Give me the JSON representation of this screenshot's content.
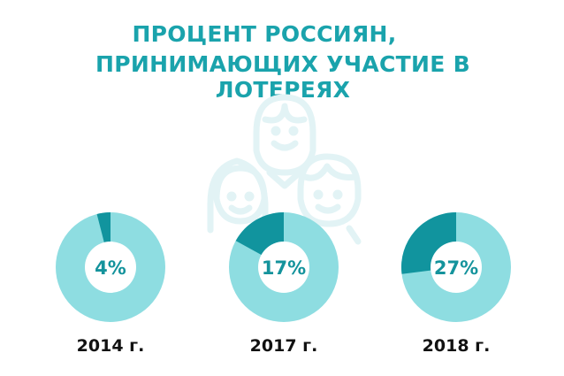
{
  "title": {
    "line1": "ПРОЦЕНТ РОССИЯН,",
    "line2": "ПРИНИМАЮЩИХ УЧАСТИЕ В ЛОТЕРЕЯХ"
  },
  "icon": "people-group-icon",
  "colors": {
    "title": "#1aa3ac",
    "filled": "#11949e",
    "rest": "#8edde1",
    "icon": "#e2f3f5"
  },
  "chart_data": {
    "type": "pie",
    "title": "ПРОЦЕНТ РОССИЯН, ПРИНИМАЮЩИХ УЧАСТИЕ В ЛОТЕРЕЯХ",
    "categories": [
      "2014 г.",
      "2017 г.",
      "2018 г."
    ],
    "values": [
      4,
      17,
      27
    ],
    "labels": [
      "4%",
      "17%",
      "27%"
    ]
  }
}
